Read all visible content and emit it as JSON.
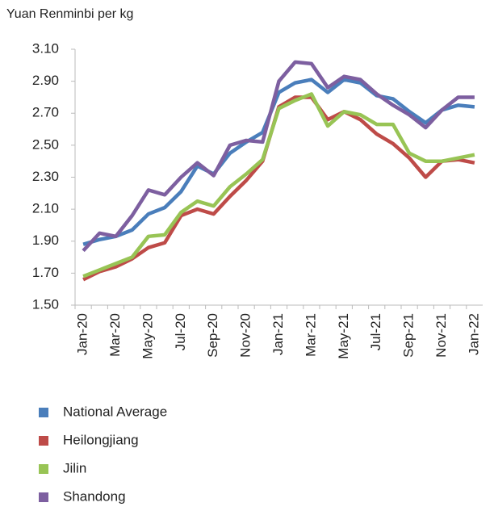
{
  "chart_data": {
    "type": "line",
    "ylabel": "Yuan Renminbi per kg",
    "categories": [
      "Jan-20",
      null,
      "Mar-20",
      null,
      "May-20",
      null,
      "Jul-20",
      null,
      "Sep-20",
      null,
      "Nov-20",
      null,
      "Jan-21",
      null,
      "Mar-21",
      null,
      "May-21",
      null,
      "Jul-21",
      null,
      "Sep-21",
      null,
      "Nov-21",
      null,
      "Jan-22"
    ],
    "series": [
      {
        "name": "National Average",
        "color": "#4a7ebb",
        "values": [
          1.88,
          1.91,
          1.93,
          1.97,
          2.07,
          2.11,
          2.21,
          2.37,
          2.32,
          2.45,
          2.52,
          2.58,
          2.83,
          2.89,
          2.91,
          2.83,
          2.91,
          2.89,
          2.81,
          2.79,
          2.71,
          2.64,
          2.72,
          2.75,
          2.74
        ]
      },
      {
        "name": "Heilongjiang",
        "color": "#be4b48",
        "values": [
          1.66,
          1.71,
          1.74,
          1.79,
          1.86,
          1.89,
          2.06,
          2.1,
          2.07,
          2.18,
          2.28,
          2.4,
          2.74,
          2.8,
          2.8,
          2.66,
          2.71,
          2.66,
          2.57,
          2.51,
          2.42,
          2.3,
          2.4,
          2.41,
          2.39
        ]
      },
      {
        "name": "Jilin",
        "color": "#98c455",
        "values": [
          1.68,
          1.72,
          1.76,
          1.8,
          1.93,
          1.94,
          2.08,
          2.15,
          2.12,
          2.24,
          2.32,
          2.41,
          2.73,
          2.78,
          2.82,
          2.62,
          2.71,
          2.69,
          2.63,
          2.63,
          2.45,
          2.4,
          2.4,
          2.42,
          2.44
        ]
      },
      {
        "name": "Shandong",
        "color": "#7d5fa0",
        "values": [
          1.84,
          1.95,
          1.93,
          2.06,
          2.22,
          2.19,
          2.3,
          2.39,
          2.31,
          2.5,
          2.53,
          2.52,
          2.9,
          3.02,
          3.01,
          2.86,
          2.93,
          2.91,
          2.82,
          2.75,
          2.69,
          2.61,
          2.72,
          2.8,
          2.8
        ]
      }
    ],
    "ylim": [
      1.5,
      3.1
    ],
    "yticks": [
      {
        "value": 1.5,
        "label": "1.50"
      },
      {
        "value": 1.7,
        "label": "1.70"
      },
      {
        "value": 1.9,
        "label": "1.90"
      },
      {
        "value": 2.1,
        "label": "2.10"
      },
      {
        "value": 2.3,
        "label": "2.30"
      },
      {
        "value": 2.5,
        "label": "2.50"
      },
      {
        "value": 2.7,
        "label": "2.70"
      },
      {
        "value": 2.9,
        "label": "2.90"
      },
      {
        "value": 3.1,
        "label": "3.10"
      }
    ],
    "grid": false,
    "legend": "bottom"
  }
}
